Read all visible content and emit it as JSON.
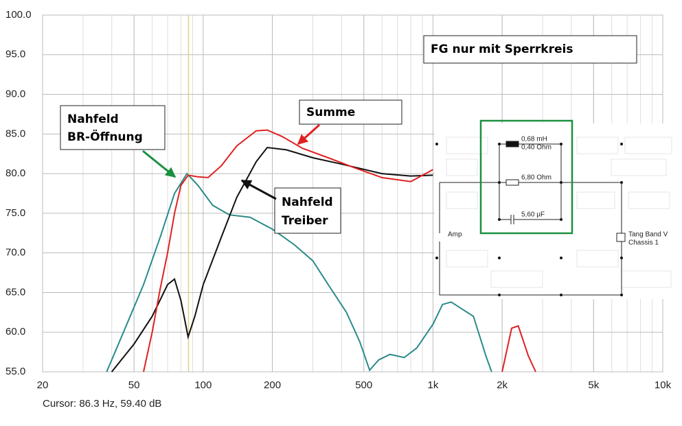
{
  "chart_data": {
    "type": "line",
    "xlim": [
      20,
      10000
    ],
    "ylim": [
      55,
      100
    ],
    "log_x": true,
    "grid": true,
    "xticks": [
      20,
      50,
      100,
      200,
      500,
      {
        "value": 1000,
        "label": "1k"
      },
      {
        "value": 2000,
        "label": "2k"
      },
      {
        "value": 5000,
        "label": "5k"
      },
      {
        "value": 10000,
        "label": "10k"
      }
    ],
    "yticks": [
      {
        "value": 55,
        "label": "55.0"
      },
      {
        "value": 60,
        "label": "60.0"
      },
      {
        "value": 65,
        "label": "65.0"
      },
      {
        "value": 70,
        "label": "70.0"
      },
      {
        "value": 75,
        "label": "75.0"
      },
      {
        "value": 80,
        "label": "80.0"
      },
      {
        "value": 85,
        "label": "85.0"
      },
      {
        "value": 90,
        "label": "90.0"
      },
      {
        "value": 95,
        "label": "95.0"
      },
      {
        "value": 100,
        "label": "100.0"
      }
    ],
    "cursor": {
      "x": 86.3,
      "y": 59.4,
      "label": "Cursor: 86.3 Hz, 59.40 dB",
      "color": "#e0d080"
    },
    "series": [
      {
        "name": "Summe",
        "color": "#e02020",
        "x": [
          55,
          60,
          65,
          70,
          75,
          80,
          86,
          95,
          105,
          120,
          140,
          170,
          190,
          220,
          270,
          350,
          450,
          600,
          800,
          1000,
          1500,
          2000,
          2200,
          2350,
          2600,
          2800
        ],
        "values": [
          55,
          60,
          65.5,
          70,
          75,
          78.5,
          79.8,
          79.6,
          79.5,
          81,
          83.5,
          85.4,
          85.5,
          84.7,
          83.2,
          82,
          80.8,
          79.5,
          79,
          80.5,
          null,
          55,
          60.5,
          60.8,
          57,
          55
        ]
      },
      {
        "name": "Nahfeld Treiber",
        "color": "#101010",
        "x": [
          40,
          50,
          60,
          70,
          75,
          80,
          86,
          92,
          100,
          120,
          140,
          170,
          190,
          230,
          300,
          400,
          600,
          800,
          1000
        ],
        "values": [
          55,
          58.5,
          62,
          66,
          66.7,
          64,
          59.4,
          62,
          66,
          72,
          77,
          81.5,
          83.3,
          83,
          82,
          81.2,
          80,
          79.7,
          79.8
        ]
      },
      {
        "name": "Nahfeld BR-Öffnung",
        "color": "#2a8a8a",
        "x": [
          38,
          45,
          55,
          65,
          75,
          85,
          95,
          110,
          130,
          160,
          200,
          250,
          300,
          350,
          420,
          480,
          530,
          580,
          650,
          750,
          850,
          1000,
          1100,
          1200,
          1500,
          1700,
          1800
        ],
        "values": [
          55,
          60,
          66,
          72,
          77.5,
          80,
          78.5,
          76,
          74.8,
          74.5,
          73,
          71,
          69,
          66,
          62.5,
          58.8,
          55.2,
          56.5,
          57.2,
          56.8,
          58,
          61,
          63.5,
          63.8,
          62,
          57,
          55
        ]
      }
    ],
    "annotations": [
      {
        "lines": [
          "FG nur mit Sperrkreis"
        ],
        "color": "#000000"
      },
      {
        "lines": [
          "Summe"
        ],
        "color": "#e02020"
      },
      {
        "lines": [
          "Nahfeld",
          "BR-Öffnung"
        ],
        "color": "#1a9040"
      },
      {
        "lines": [
          "Nahfeld",
          "Treiber"
        ],
        "color": "#000000"
      }
    ],
    "circuit": {
      "inductor": [
        "0,68 mH",
        "0,40 Ohm"
      ],
      "resistor": "6,80 Ohm",
      "capacitor": "5,60 µF",
      "source": "Amp",
      "driver": [
        "Tang Band V",
        "Chassis 1"
      ]
    }
  }
}
